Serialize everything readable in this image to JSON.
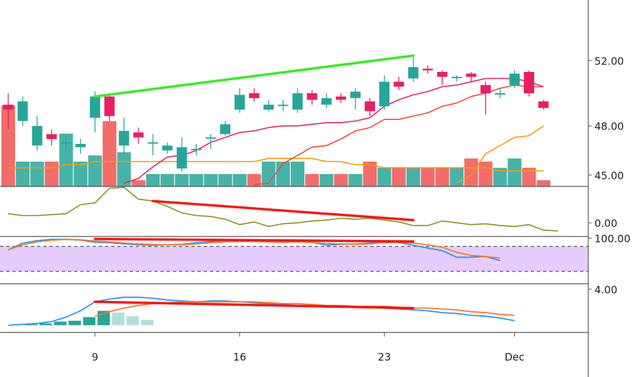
{
  "colors": {
    "up": "#26a69a",
    "down": "#ef5350",
    "candle_down": "#e91e63",
    "ma_red": "#e91e63",
    "ma_orange_red": "#f44336",
    "ma_orange": "#ff9800",
    "trend_green": "#33ee22",
    "trend_red": "#ff1111",
    "olive": "#8c8c1a",
    "blue": "#2196f3",
    "orange": "#ff7722",
    "rsi_band": "#e6ccff",
    "axis": "#555555"
  },
  "x_axis": {
    "ticks": [
      {
        "i": 6,
        "label": "9"
      },
      {
        "i": 16,
        "label": "16"
      },
      {
        "i": 26,
        "label": "23"
      },
      {
        "i": 35,
        "label": "Dec"
      }
    ]
  },
  "chart_data": [
    {
      "type": "candlestick",
      "pane": "price",
      "yticks": [
        {
          "value": 52.0,
          "label": "52.00"
        },
        {
          "value": 48.0,
          "label": "48.00"
        },
        {
          "value": 45.0,
          "label": "45.00"
        }
      ],
      "ylim": [
        44.3,
        55.7
      ],
      "candles": [
        {
          "o": 49.3,
          "c": 49.0,
          "h": 50.0,
          "l": 47.8
        },
        {
          "o": 48.3,
          "c": 49.5,
          "h": 49.8,
          "l": 48.0
        },
        {
          "o": 46.8,
          "c": 48.0,
          "h": 48.6,
          "l": 46.5
        },
        {
          "o": 47.5,
          "c": 47.2,
          "h": 47.8,
          "l": 46.8
        },
        {
          "o": 47.0,
          "c": 47.0,
          "h": 47.5,
          "l": 46.5
        },
        {
          "o": 46.7,
          "c": 46.9,
          "h": 47.2,
          "l": 46.3
        },
        {
          "o": 48.5,
          "c": 49.8,
          "h": 50.1,
          "l": 47.6
        },
        {
          "o": 49.8,
          "c": 48.6,
          "h": 49.9,
          "l": 48.3
        },
        {
          "o": 46.8,
          "c": 47.7,
          "h": 48.5,
          "l": 46.3
        },
        {
          "o": 47.6,
          "c": 47.3,
          "h": 47.9,
          "l": 46.9
        },
        {
          "o": 47.0,
          "c": 47.0,
          "h": 47.5,
          "l": 46.2
        },
        {
          "o": 46.5,
          "c": 46.8,
          "h": 47.0,
          "l": 46.3
        },
        {
          "o": 45.4,
          "c": 46.7,
          "h": 47.3,
          "l": 45.2
        },
        {
          "o": 46.6,
          "c": 46.6,
          "h": 46.9,
          "l": 46.2
        },
        {
          "o": 47.3,
          "c": 47.3,
          "h": 47.5,
          "l": 46.6
        },
        {
          "o": 47.5,
          "c": 48.1,
          "h": 48.3,
          "l": 47.4
        },
        {
          "o": 49.0,
          "c": 49.9,
          "h": 50.3,
          "l": 48.8
        },
        {
          "o": 50.0,
          "c": 49.7,
          "h": 50.3,
          "l": 49.5
        },
        {
          "o": 49.0,
          "c": 49.3,
          "h": 49.6,
          "l": 48.9
        },
        {
          "o": 49.3,
          "c": 49.3,
          "h": 49.6,
          "l": 48.9
        },
        {
          "o": 49.0,
          "c": 50.0,
          "h": 50.3,
          "l": 48.8
        },
        {
          "o": 50.0,
          "c": 49.6,
          "h": 50.2,
          "l": 49.3
        },
        {
          "o": 49.3,
          "c": 49.7,
          "h": 50.0,
          "l": 49.1
        },
        {
          "o": 49.8,
          "c": 49.6,
          "h": 50.0,
          "l": 49.4
        },
        {
          "o": 49.7,
          "c": 50.1,
          "h": 50.3,
          "l": 49.0
        },
        {
          "o": 49.5,
          "c": 48.9,
          "h": 49.7,
          "l": 48.6
        },
        {
          "o": 49.2,
          "c": 50.7,
          "h": 51.1,
          "l": 49.0
        },
        {
          "o": 50.7,
          "c": 50.4,
          "h": 51.0,
          "l": 50.2
        },
        {
          "o": 50.9,
          "c": 51.6,
          "h": 52.2,
          "l": 50.7
        },
        {
          "o": 51.5,
          "c": 51.4,
          "h": 51.7,
          "l": 51.2
        },
        {
          "o": 51.3,
          "c": 51.0,
          "h": 51.4,
          "l": 50.5
        },
        {
          "o": 51.0,
          "c": 51.0,
          "h": 51.1,
          "l": 50.7
        },
        {
          "o": 51.2,
          "c": 51.0,
          "h": 51.3,
          "l": 50.7
        },
        {
          "o": 50.5,
          "c": 50.0,
          "h": 50.7,
          "l": 48.7
        },
        {
          "o": 50.0,
          "c": 50.0,
          "h": 50.3,
          "l": 49.7
        },
        {
          "o": 50.5,
          "c": 51.2,
          "h": 51.4,
          "l": 50.3
        },
        {
          "o": 51.3,
          "c": 50.0,
          "h": 51.4,
          "l": 49.8
        },
        {
          "o": 49.5,
          "c": 49.1,
          "h": 49.6,
          "l": 49.0
        }
      ],
      "ma_fast": [
        null,
        null,
        null,
        null,
        null,
        null,
        null,
        null,
        44.5,
        44.8,
        45.5,
        46.1,
        46.2,
        46.5,
        47.0,
        47.3,
        47.6,
        47.7,
        47.9,
        48.0,
        48.0,
        48.1,
        48.2,
        48.2,
        48.3,
        48.5,
        49.2,
        49.6,
        49.9,
        50.1,
        50.4,
        50.5,
        50.7,
        50.9,
        50.9,
        50.9,
        50.7,
        50.4
      ],
      "ma_slow": [
        null,
        null,
        null,
        null,
        null,
        null,
        null,
        null,
        null,
        null,
        null,
        null,
        null,
        null,
        null,
        null,
        null,
        44.4,
        44.5,
        45.7,
        46.2,
        46.7,
        46.8,
        47.2,
        47.7,
        47.9,
        48.4,
        48.4,
        48.6,
        48.8,
        49.2,
        49.4,
        49.8,
        50.0,
        50.3,
        50.5,
        50.4,
        50.4
      ],
      "ma_long": [
        null,
        null,
        null,
        null,
        null,
        null,
        null,
        null,
        null,
        null,
        null,
        null,
        null,
        null,
        null,
        null,
        null,
        null,
        null,
        null,
        null,
        null,
        null,
        null,
        null,
        null,
        null,
        null,
        null,
        null,
        null,
        44.5,
        45.0,
        46.3,
        46.8,
        47.3,
        47.4,
        48.0
      ],
      "volume": [
        26,
        8,
        8,
        8,
        17,
        8,
        10,
        21,
        11,
        2,
        4,
        4,
        4,
        4,
        4,
        4,
        4,
        4,
        8,
        8,
        8,
        4,
        4,
        4,
        4,
        8,
        6,
        6,
        6,
        6,
        6,
        6,
        9,
        8,
        6,
        9,
        6,
        2
      ],
      "volume_ma": [
        6,
        6,
        6,
        6,
        7,
        7,
        8,
        8,
        8,
        8,
        8,
        8,
        8,
        8,
        8,
        8,
        8,
        8,
        9,
        9,
        9,
        9,
        8,
        8,
        7,
        7,
        6,
        6,
        6,
        6,
        6,
        6,
        6,
        6,
        5,
        5,
        5,
        5
      ],
      "trend_lines": [
        {
          "from": {
            "i": 6,
            "value": 49.8
          },
          "to": {
            "i": 28,
            "value": 52.3
          },
          "color": "trend_green"
        }
      ]
    },
    {
      "type": "line",
      "pane": "oscillator",
      "yticks": [
        {
          "value": 0.0,
          "label": "0.00"
        }
      ],
      "ylim": [
        -1.5,
        4.0
      ],
      "series": [
        {
          "values": [
            1.0,
            0.8,
            0.8,
            0.9,
            1.0,
            2.0,
            2.2,
            3.8,
            3.9,
            2.6,
            2.4,
            1.8,
            1.1,
            0.8,
            0.7,
            0.4,
            -0.2,
            0.1,
            -0.4,
            -0.1,
            0.0,
            0.2,
            0.3,
            0.5,
            0.4,
            0.5,
            0.3,
            0.1,
            -0.3,
            -0.3,
            0.2,
            0.0,
            -0.2,
            -0.1,
            -0.3,
            -0.4,
            -0.2,
            -0.8,
            -0.9
          ],
          "color": "olive"
        }
      ],
      "trend_lines": [
        {
          "from": {
            "i": 10,
            "value": 2.4
          },
          "to": {
            "i": 28,
            "value": 0.3
          },
          "color": "trend_red"
        }
      ]
    },
    {
      "type": "line",
      "pane": "stochastic",
      "yticks": [
        {
          "value": 100.0,
          "label": "100.00"
        }
      ],
      "ylim": [
        -10,
        104
      ],
      "band": [
        20,
        80
      ],
      "series": [
        {
          "values": [
            72,
            88,
            94,
            97,
            97,
            95,
            90,
            89,
            86,
            84,
            83,
            84,
            85,
            89,
            92,
            94,
            93,
            92,
            91,
            90,
            92,
            90,
            83,
            85,
            86,
            88,
            93,
            89,
            83,
            76,
            70,
            54,
            54,
            56,
            46
          ],
          "color": "blue"
        },
        {
          "values": [
            72,
            84,
            91,
            95,
            97,
            96,
            93,
            91,
            88,
            86,
            85,
            84,
            84,
            86,
            89,
            91,
            92,
            92,
            91,
            90,
            91,
            90,
            87,
            86,
            85,
            86,
            89,
            90,
            88,
            84,
            78,
            66,
            58,
            56,
            52
          ],
          "color": "orange"
        }
      ],
      "trend_lines": [
        {
          "from": {
            "i": 6,
            "value": 98
          },
          "to": {
            "i": 28,
            "value": 92
          },
          "color": "trend_red"
        }
      ]
    },
    {
      "type": "line",
      "pane": "macd",
      "yticks": [
        {
          "value": 4.0,
          "label": "4.00"
        }
      ],
      "ylim": [
        -0.8,
        4.6
      ],
      "series": [
        {
          "values": [
            0.0,
            0.1,
            0.2,
            0.4,
            0.9,
            1.6,
            2.6,
            2.9,
            3.1,
            3.1,
            3.0,
            2.8,
            2.7,
            2.6,
            2.7,
            2.7,
            2.6,
            2.5,
            2.4,
            2.3,
            2.2,
            2.1,
            2.0,
            2.0,
            2.0,
            2.0,
            1.9,
            1.8,
            1.7,
            1.6,
            1.4,
            1.3,
            1.1,
            1.0,
            0.8,
            0.5
          ],
          "color": "blue"
        },
        {
          "values": [
            null,
            null,
            null,
            null,
            null,
            null,
            1.0,
            1.5,
            1.9,
            2.2,
            2.4,
            2.5,
            2.6,
            2.6,
            2.6,
            2.6,
            2.6,
            2.6,
            2.5,
            2.4,
            2.4,
            2.3,
            2.2,
            2.2,
            2.1,
            2.1,
            2.1,
            2.0,
            1.9,
            1.9,
            1.8,
            1.7,
            1.5,
            1.4,
            1.2,
            1.1
          ],
          "color": "orange"
        }
      ],
      "histogram": [
        0,
        0.1,
        0.2,
        0.4,
        0.5,
        0.9,
        1.6,
        1.4,
        1.0,
        0.6
      ],
      "trend_lines": [
        {
          "from": {
            "i": 6,
            "value": 2.6
          },
          "to": {
            "i": 28,
            "value": 1.9
          },
          "color": "trend_red"
        }
      ]
    }
  ]
}
